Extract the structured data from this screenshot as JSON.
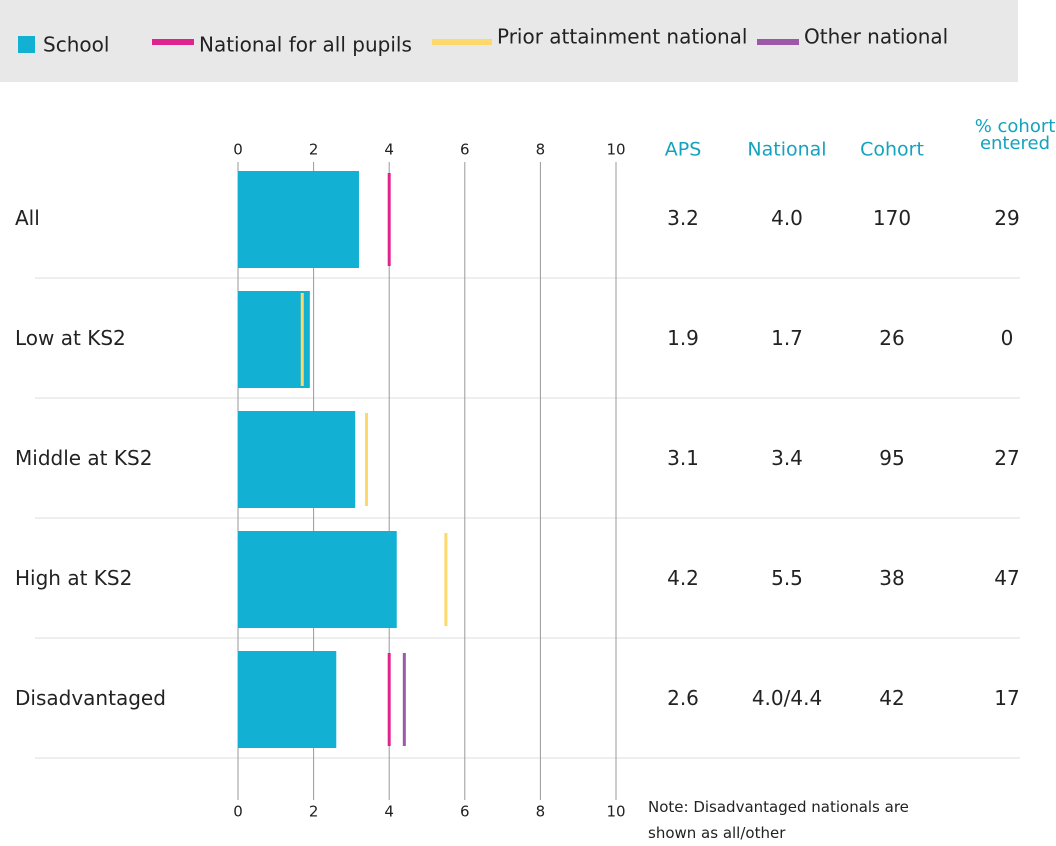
{
  "chart_data": {
    "type": "bar",
    "orientation": "horizontal",
    "categories": [
      "All",
      "Low at KS2",
      "Middle at KS2",
      "High at KS2",
      "Disadvantaged"
    ],
    "series": [
      {
        "name": "School",
        "color": "#12b0d2",
        "mark": "bar",
        "values": [
          3.2,
          1.9,
          3.1,
          4.2,
          2.6
        ]
      },
      {
        "name": "National for all pupils",
        "color": "#e0248f",
        "mark": "tick",
        "values": [
          4.0,
          null,
          null,
          null,
          4.0
        ]
      },
      {
        "name": "Prior attainment national",
        "color": "#fcd96a",
        "mark": "tick",
        "values": [
          null,
          1.7,
          3.4,
          5.5,
          null
        ]
      },
      {
        "name": "Other national",
        "color": "#9b59a8",
        "mark": "tick",
        "values": [
          null,
          null,
          null,
          null,
          4.4
        ]
      }
    ],
    "xlim": [
      0,
      10
    ],
    "xticks": [
      0,
      2,
      4,
      6,
      8,
      10
    ],
    "grid": true,
    "table": {
      "columns": [
        "APS",
        "National",
        "Cohort",
        "% cohort entered"
      ],
      "rows": [
        [
          "3.2",
          "4.0",
          "170",
          "29"
        ],
        [
          "1.9",
          "1.7",
          "26",
          "0"
        ],
        [
          "3.1",
          "3.4",
          "95",
          "27"
        ],
        [
          "4.2",
          "5.5",
          "38",
          "47"
        ],
        [
          "2.6",
          "4.0/4.4",
          "42",
          "17"
        ]
      ]
    },
    "note": "Note: Disadvantaged nationals are shown as all/other"
  }
}
